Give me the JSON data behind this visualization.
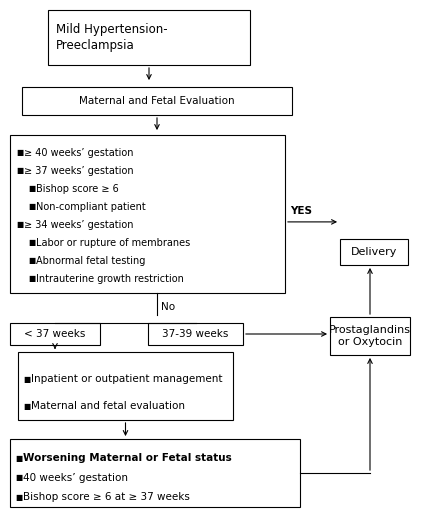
{
  "bg_color": "#ffffff",
  "box_color": "#ffffff",
  "box_edge_color": "#000000",
  "arrow_color": "#000000",
  "text_color": "#000000",
  "title": "Mild Hypertension-\nPreeclampsia",
  "box1": "Maternal and Fetal Evaluation",
  "box2_lines": [
    [
      "■",
      "≥ 40 weeks’ gestation",
      0
    ],
    [
      "■",
      "≥ 37 weeks’ gestation",
      0
    ],
    [
      "■",
      "Bishop score ≥ 6",
      1
    ],
    [
      "■",
      "Non-compliant patient",
      1
    ],
    [
      "■",
      "≥ 34 weeks’ gestation",
      0
    ],
    [
      "■",
      "Labor or rupture of membranes",
      1
    ],
    [
      "■",
      "Abnormal fetal testing",
      1
    ],
    [
      "■",
      "Intrauterine growth restriction",
      1
    ]
  ],
  "yes_label": "YES",
  "no_label": "No",
  "box_delivery": "Delivery",
  "box_prostaglandins": "Prostaglandins\nor Oxytocin",
  "box_less37": "< 37 weeks",
  "box_37_39": "37-39 weeks",
  "box_management_lines": [
    [
      "■",
      "Inpatient or outpatient management",
      0
    ],
    [
      "■",
      "Maternal and fetal evaluation",
      0
    ]
  ],
  "box_worsening_lines": [
    [
      "■",
      "Worsening Maternal or Fetal status",
      1
    ],
    [
      "■",
      "40 weeks’ gestation",
      0
    ],
    [
      "■",
      "Bishop score ≥ 6 at ≥ 37 weeks",
      0
    ]
  ]
}
